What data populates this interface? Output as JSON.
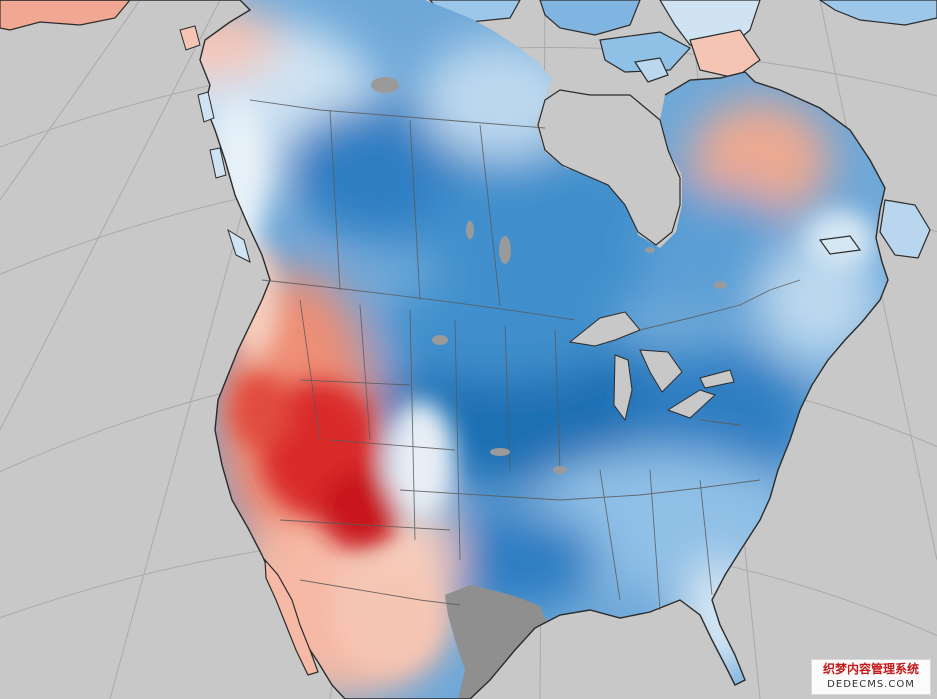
{
  "map": {
    "kind": "temperature-anomaly map of North America",
    "colors": {
      "ocean": "#c8c8c8",
      "graticule": "#aaaaaa",
      "no_data": "#8f8f8f",
      "coast": "#2b2b2b",
      "border": "#5a5a5a",
      "cold_strong": "#1f6fb4",
      "cold_mid": "#3f8fcc",
      "cold_light": "#8fc0e6",
      "cool_pale": "#cfe3f3",
      "neutral": "#eef2f6",
      "warm_pale": "#f7cdbc",
      "warm_mid": "#ee8e76",
      "hot": "#d92a2a",
      "hot_strong": "#b80f18"
    }
  },
  "watermark": {
    "line1": "织梦内容管理系统",
    "line2": "DEDECMS.COM"
  }
}
